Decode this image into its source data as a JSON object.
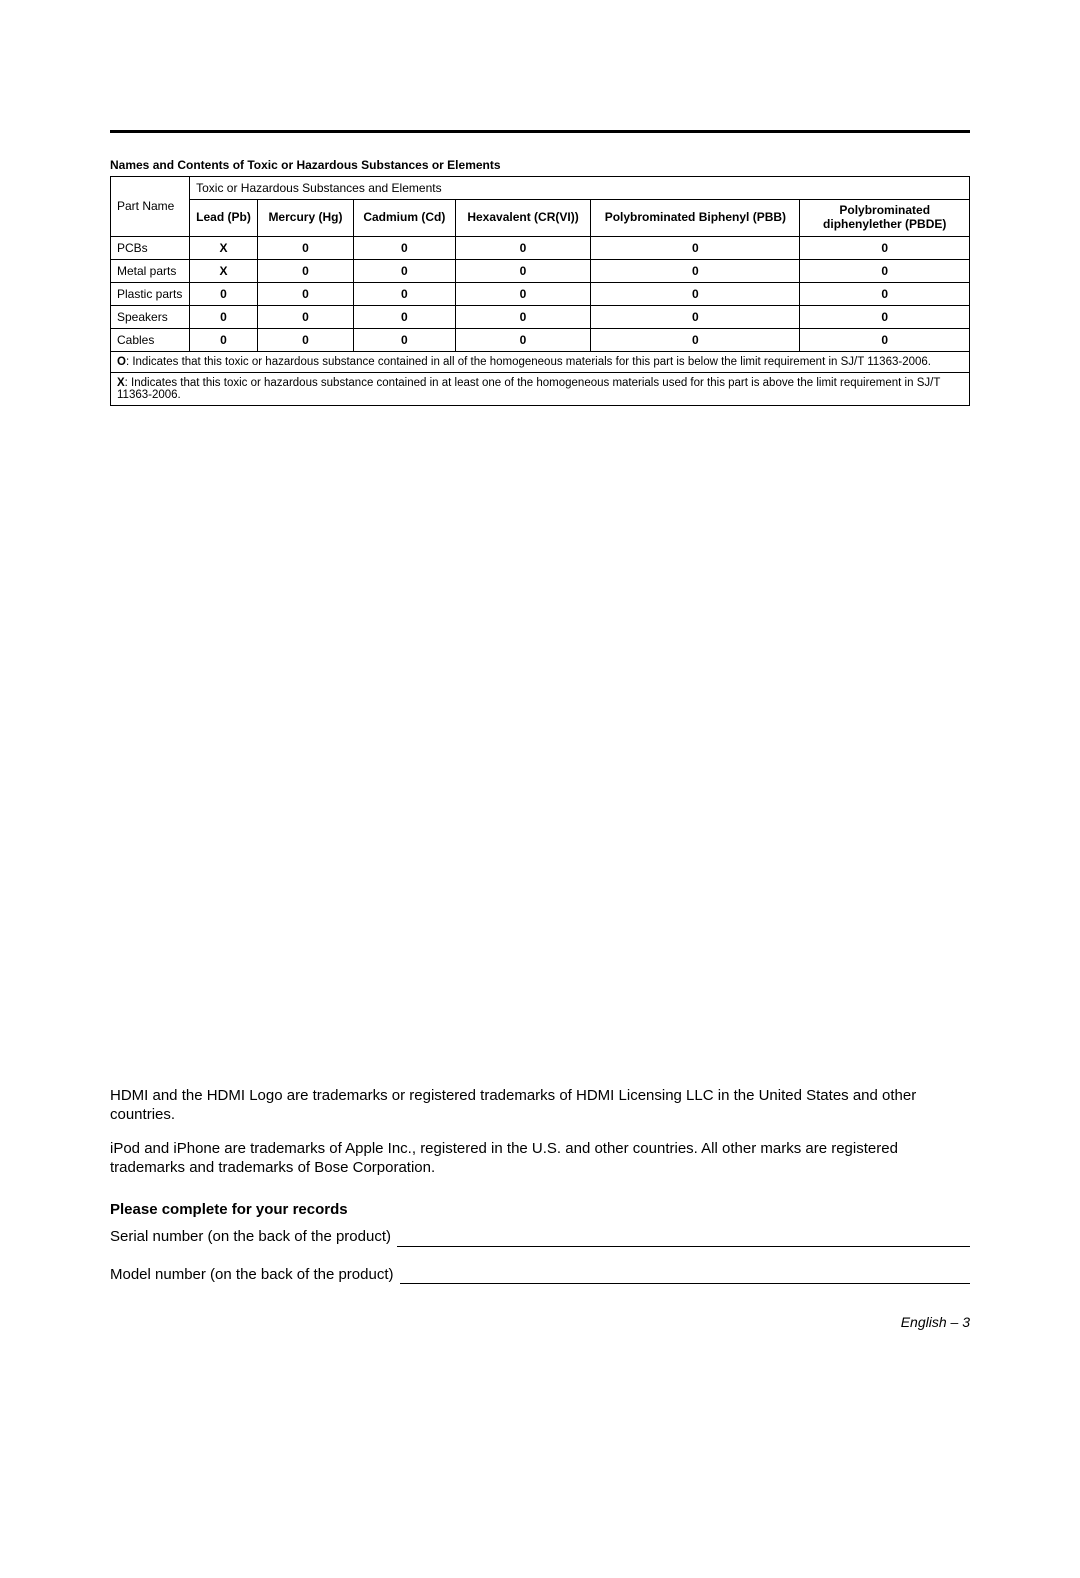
{
  "table": {
    "title": "Names and Contents of Toxic or Hazardous Substances or Elements",
    "group_header": "Toxic or Hazardous Substances and Elements",
    "part_col_header": "Part Name",
    "substance_headers": [
      "Lead (Pb)",
      "Mercury (Hg)",
      "Cadmium (Cd)",
      "Hexavalent (CR(VI))",
      "Polybrominated Biphenyl (PBB)",
      "Polybrominated diphenylether (PBDE)"
    ],
    "rows": [
      {
        "name": "PCBs",
        "vals": [
          "X",
          "0",
          "0",
          "0",
          "0",
          "0"
        ]
      },
      {
        "name": "Metal parts",
        "vals": [
          "X",
          "0",
          "0",
          "0",
          "0",
          "0"
        ]
      },
      {
        "name": "Plastic parts",
        "vals": [
          "0",
          "0",
          "0",
          "0",
          "0",
          "0"
        ]
      },
      {
        "name": "Speakers",
        "vals": [
          "0",
          "0",
          "0",
          "0",
          "0",
          "0"
        ]
      },
      {
        "name": "Cables",
        "vals": [
          "0",
          "0",
          "0",
          "0",
          "0",
          "0"
        ]
      }
    ],
    "note_o_lead": "O",
    "note_o": ": Indicates that this toxic or hazardous substance contained in all of the homogeneous materials for this part is below the limit requirement in SJ/T 11363-2006.",
    "note_x_lead": "X",
    "note_x": ": Indicates that this toxic or hazardous substance contained in at least one of the homogeneous materials used for this part is above the limit requirement in SJ/T 11363-2006."
  },
  "paragraphs": {
    "hdmi": "HDMI and the HDMI Logo are trademarks or registered trademarks of HDMI Licensing LLC in the United States and other countries.",
    "apple": "iPod and iPhone are trademarks of Apple Inc., registered in the U.S. and other countries. All other marks are registered trademarks and trademarks of Bose Corporation."
  },
  "records": {
    "title": "Please complete for your records",
    "serial_label": "Serial number (on the back of the product)",
    "model_label": "Model number (on the back of the product)"
  },
  "footer": "English – 3",
  "colors": {
    "text": "#000000",
    "background": "#ffffff",
    "border": "#000000"
  },
  "fonts": {
    "body_size_pt": 11,
    "table_size_pt": 9,
    "bold_weight": 700
  }
}
